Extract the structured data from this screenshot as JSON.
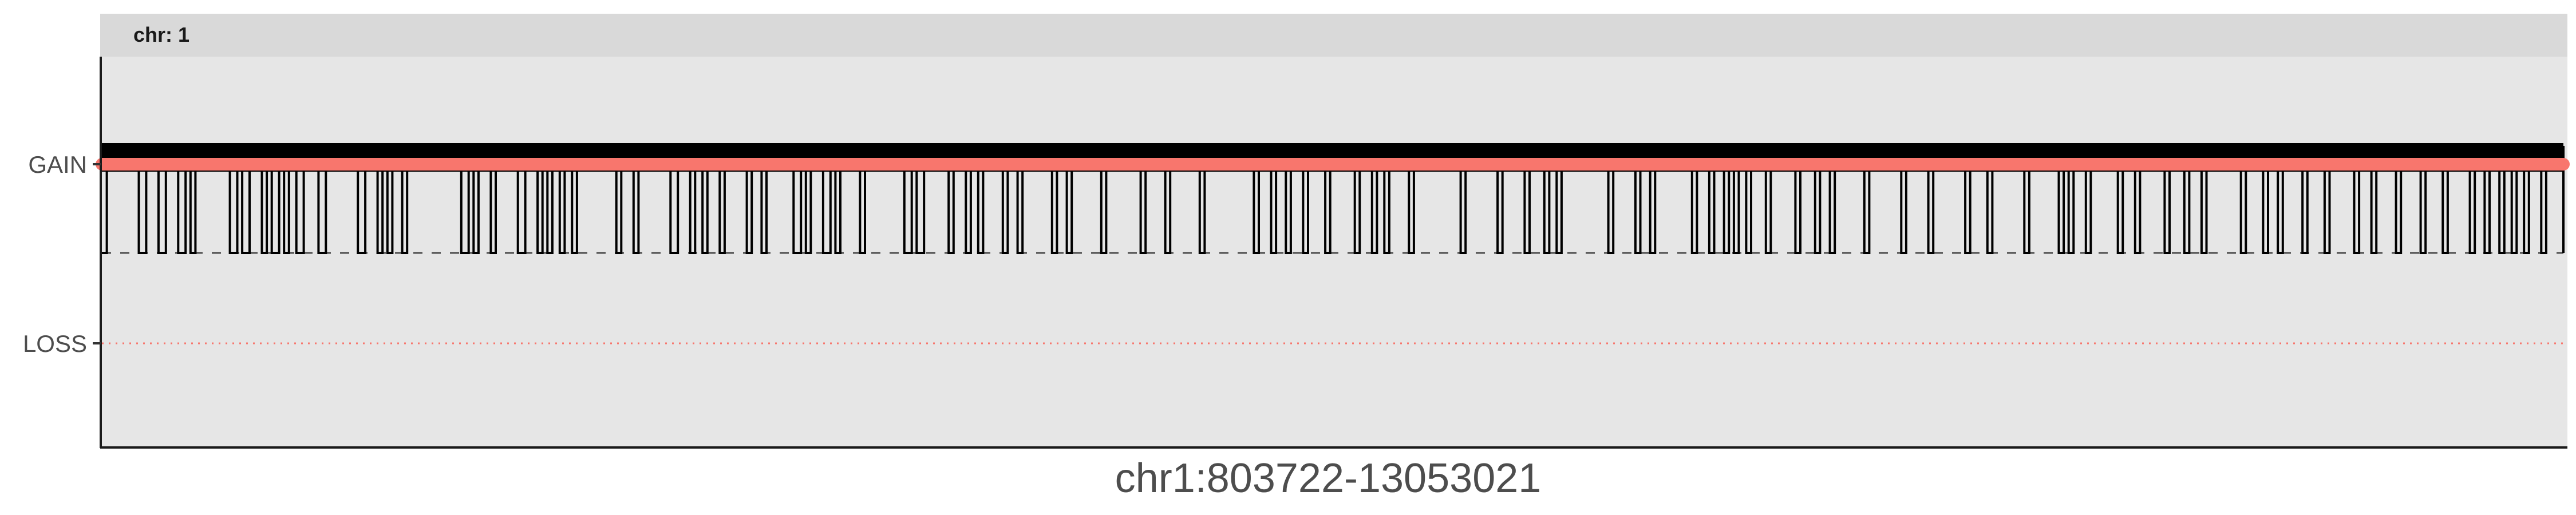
{
  "chart_data": {
    "type": "line",
    "facet_label": "chr: 1",
    "xlabel": "chr1:803722-13053021",
    "ylabel": "",
    "y_categories": [
      "GAIN",
      "LOSS"
    ],
    "baseline_level": "LOSS",
    "colors": {
      "panel_background": "#e6e6e6",
      "strip_background": "#d9d9d9",
      "gain_segment": "#f8766d",
      "signal_line": "#000000",
      "baseline_dash": "#4d4d4d",
      "loss_dotted": "#f8766d"
    },
    "series": [
      {
        "name": "",
        "kind": "segment",
        "level": "GAIN",
        "x_start": 803722,
        "x_end": 13053021
      }
    ],
    "signal_drop_intervals": [
      [
        0.0,
        0.002
      ],
      [
        0.015,
        0.018
      ],
      [
        0.023,
        0.026
      ],
      [
        0.031,
        0.034
      ],
      [
        0.036,
        0.038
      ],
      [
        0.052,
        0.055
      ],
      [
        0.057,
        0.06
      ],
      [
        0.065,
        0.067
      ],
      [
        0.069,
        0.072
      ],
      [
        0.074,
        0.076
      ],
      [
        0.079,
        0.082
      ],
      [
        0.088,
        0.091
      ],
      [
        0.104,
        0.107
      ],
      [
        0.112,
        0.114
      ],
      [
        0.116,
        0.118
      ],
      [
        0.122,
        0.124
      ],
      [
        0.146,
        0.149
      ],
      [
        0.151,
        0.153
      ],
      [
        0.158,
        0.16
      ],
      [
        0.169,
        0.172
      ],
      [
        0.177,
        0.179
      ],
      [
        0.181,
        0.183
      ],
      [
        0.186,
        0.188
      ],
      [
        0.191,
        0.193
      ],
      [
        0.209,
        0.211
      ],
      [
        0.216,
        0.218
      ],
      [
        0.231,
        0.234
      ],
      [
        0.239,
        0.241
      ],
      [
        0.244,
        0.246
      ],
      [
        0.251,
        0.253
      ],
      [
        0.262,
        0.264
      ],
      [
        0.268,
        0.27
      ],
      [
        0.281,
        0.284
      ],
      [
        0.286,
        0.288
      ],
      [
        0.293,
        0.296
      ],
      [
        0.298,
        0.3
      ],
      [
        0.308,
        0.31
      ],
      [
        0.326,
        0.329
      ],
      [
        0.331,
        0.334
      ],
      [
        0.344,
        0.346
      ],
      [
        0.351,
        0.353
      ],
      [
        0.356,
        0.358
      ],
      [
        0.366,
        0.368
      ],
      [
        0.372,
        0.374
      ],
      [
        0.386,
        0.388
      ],
      [
        0.392,
        0.394
      ],
      [
        0.406,
        0.408
      ],
      [
        0.422,
        0.424
      ],
      [
        0.432,
        0.434
      ],
      [
        0.446,
        0.448
      ],
      [
        0.468,
        0.47
      ],
      [
        0.475,
        0.477
      ],
      [
        0.481,
        0.483
      ],
      [
        0.488,
        0.49
      ],
      [
        0.497,
        0.499
      ],
      [
        0.509,
        0.511
      ],
      [
        0.516,
        0.518
      ],
      [
        0.521,
        0.523
      ],
      [
        0.531,
        0.533
      ],
      [
        0.552,
        0.554
      ],
      [
        0.567,
        0.569
      ],
      [
        0.578,
        0.58
      ],
      [
        0.586,
        0.588
      ],
      [
        0.591,
        0.593
      ],
      [
        0.612,
        0.614
      ],
      [
        0.623,
        0.625
      ],
      [
        0.629,
        0.631
      ],
      [
        0.646,
        0.648
      ],
      [
        0.653,
        0.655
      ],
      [
        0.659,
        0.661
      ],
      [
        0.663,
        0.665
      ],
      [
        0.668,
        0.67
      ],
      [
        0.676,
        0.678
      ],
      [
        0.688,
        0.69
      ],
      [
        0.696,
        0.698
      ],
      [
        0.702,
        0.704
      ],
      [
        0.716,
        0.718
      ],
      [
        0.731,
        0.733
      ],
      [
        0.742,
        0.744
      ],
      [
        0.757,
        0.759
      ],
      [
        0.766,
        0.768
      ],
      [
        0.781,
        0.783
      ],
      [
        0.795,
        0.797
      ],
      [
        0.799,
        0.801
      ],
      [
        0.806,
        0.808
      ],
      [
        0.819,
        0.821
      ],
      [
        0.826,
        0.828
      ],
      [
        0.838,
        0.84
      ],
      [
        0.846,
        0.848
      ],
      [
        0.853,
        0.855
      ],
      [
        0.869,
        0.871
      ],
      [
        0.878,
        0.88
      ],
      [
        0.884,
        0.886
      ],
      [
        0.894,
        0.896
      ],
      [
        0.903,
        0.905
      ],
      [
        0.915,
        0.917
      ],
      [
        0.922,
        0.924
      ],
      [
        0.932,
        0.934
      ],
      [
        0.942,
        0.944
      ],
      [
        0.951,
        0.953
      ],
      [
        0.962,
        0.964
      ],
      [
        0.968,
        0.97
      ],
      [
        0.974,
        0.976
      ],
      [
        0.979,
        0.981
      ],
      [
        0.984,
        0.986
      ],
      [
        0.991,
        0.993
      ]
    ],
    "grid": false,
    "legend": "none"
  }
}
